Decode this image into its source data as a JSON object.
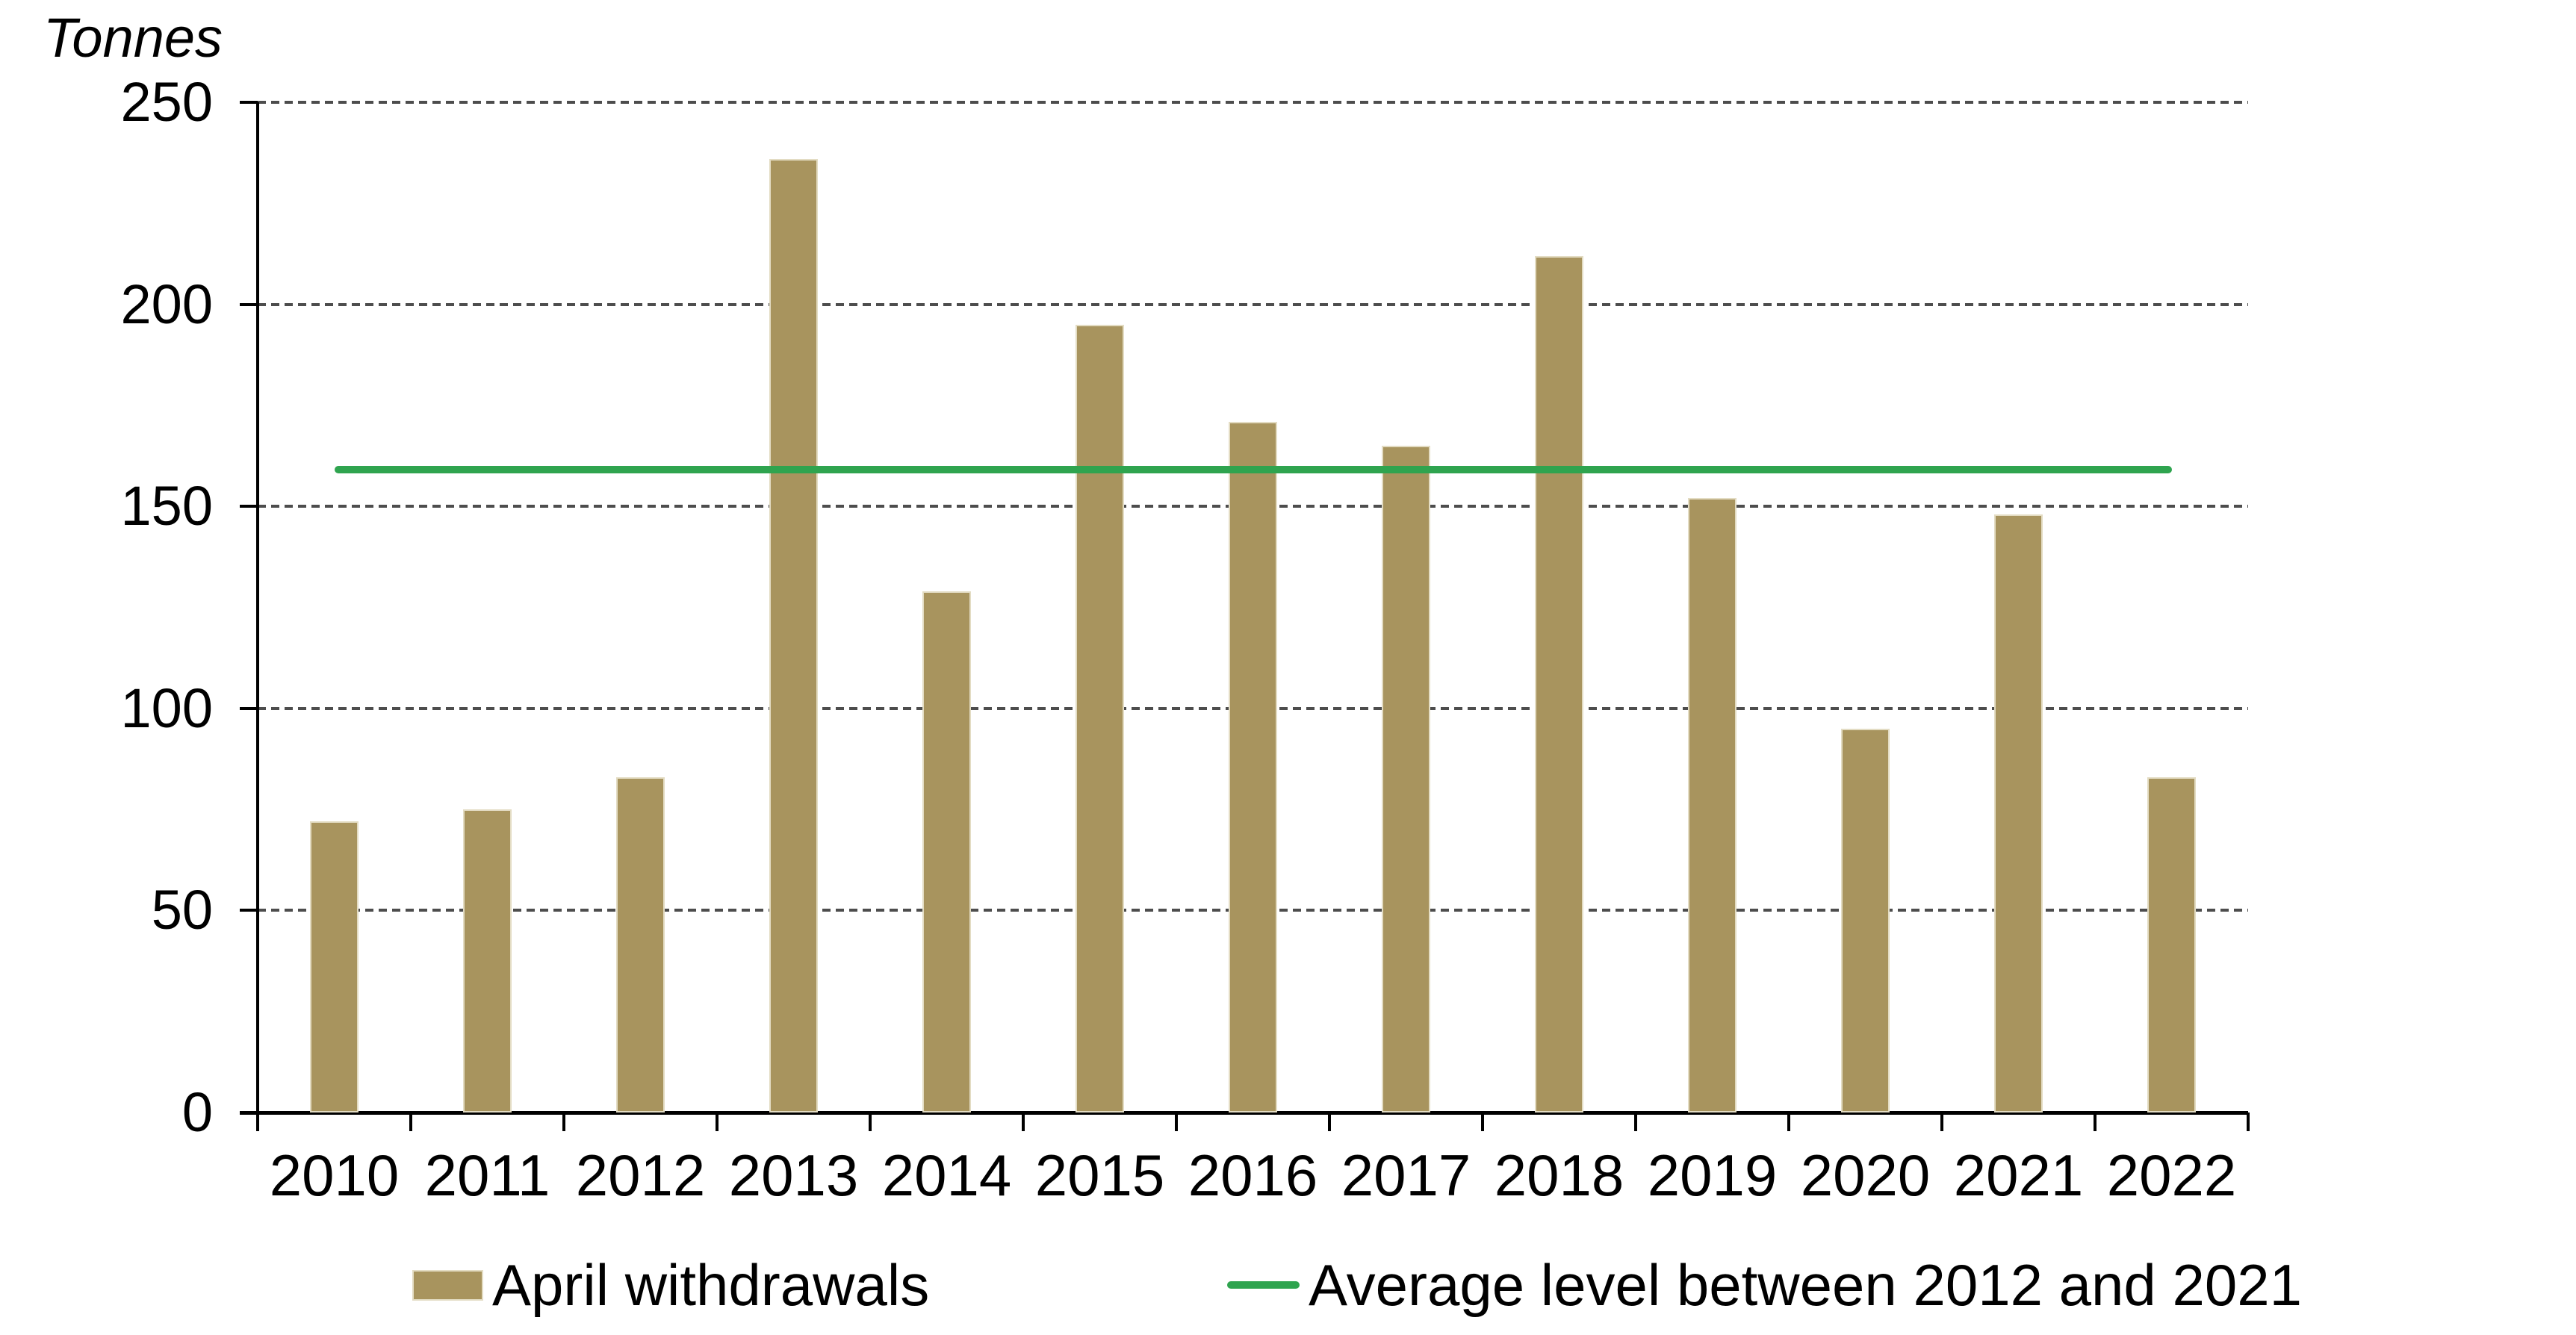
{
  "chart_data": {
    "type": "bar",
    "unit_label": "Tonnes",
    "categories": [
      "2010",
      "2011",
      "2012",
      "2013",
      "2014",
      "2015",
      "2016",
      "2017",
      "2018",
      "2019",
      "2020",
      "2021",
      "2022"
    ],
    "series": [
      {
        "name": "April withdrawals",
        "values": [
          72,
          75,
          83,
          236,
          129,
          195,
          171,
          165,
          212,
          152,
          95,
          148,
          83
        ],
        "color": "#a8945e"
      }
    ],
    "average_line": {
      "name": "Average level between 2012 and 2021",
      "value": 159,
      "color": "#2fa44f",
      "spans": "from first to last category center"
    },
    "ylim": [
      0,
      250
    ],
    "yticks": [
      0,
      50,
      100,
      150,
      200,
      250
    ],
    "xlabel": "",
    "ylabel": "Tonnes",
    "grid": "horizontal dashed gridlines at each y tick",
    "legend_position": "bottom"
  },
  "colors": {
    "bar_fill": "#a8945e",
    "bar_edge": "#e3dcc3",
    "average_line": "#2fa44f",
    "gridline": "#4d4d4d",
    "axis": "#000000",
    "background": "#ffffff"
  }
}
